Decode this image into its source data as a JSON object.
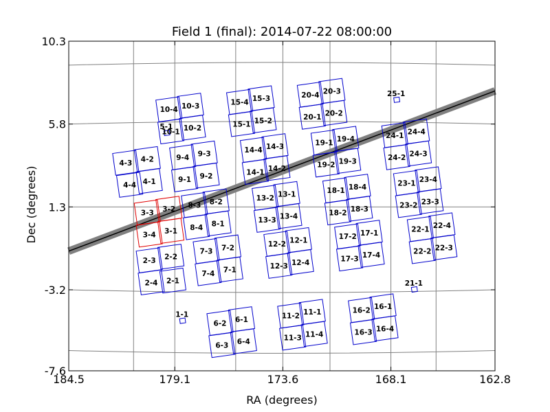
{
  "chart_data": {
    "type": "scatter",
    "title": "Field 1 (final): 2014-07-22 08:00:00",
    "xlabel": "RA (degrees)",
    "ylabel": "Dec (degrees)",
    "xlim": [
      184.5,
      162.8
    ],
    "ylim": [
      -7.6,
      10.3
    ],
    "xticks": [
      "184.5",
      "179.1",
      "173.6",
      "168.1",
      "162.8"
    ],
    "yticks": [
      "10.3",
      "5.8",
      "1.3",
      "-3.2",
      "-7.6"
    ],
    "grid": true,
    "colors": {
      "frame": "#000000",
      "grid": "#808080",
      "active": "#0000cc",
      "highlight": "#e00000",
      "band": "#808080",
      "line": "#000000"
    },
    "ecliptic_band": {
      "points": [
        [
          184.5,
          -1.1
        ],
        [
          162.8,
          7.6
        ]
      ]
    },
    "ccds": [
      {
        "label": "1-1",
        "ra": 178.7,
        "dec": -4.9,
        "size": "small"
      },
      {
        "label": "5-1",
        "ra": 179.5,
        "dec": 5.3,
        "size": "small"
      },
      {
        "label": "21-1",
        "ra": 166.9,
        "dec": -3.2,
        "size": "small"
      },
      {
        "label": "25-1",
        "ra": 167.8,
        "dec": 7.1,
        "size": "small"
      },
      {
        "label": "2-3",
        "ra": 180.4,
        "dec": -1.6
      },
      {
        "label": "2-2",
        "ra": 179.3,
        "dec": -1.4
      },
      {
        "label": "2-4",
        "ra": 180.3,
        "dec": -2.8
      },
      {
        "label": "2-1",
        "ra": 179.2,
        "dec": -2.7
      },
      {
        "label": "3-3",
        "ra": 180.5,
        "dec": 1.0,
        "highlight": true
      },
      {
        "label": "3-2",
        "ra": 179.4,
        "dec": 1.2,
        "highlight": true
      },
      {
        "label": "3-4",
        "ra": 180.4,
        "dec": -0.2,
        "highlight": true
      },
      {
        "label": "3-1",
        "ra": 179.3,
        "dec": 0.0,
        "highlight": true
      },
      {
        "label": "4-3",
        "ra": 181.6,
        "dec": 3.7
      },
      {
        "label": "4-2",
        "ra": 180.5,
        "dec": 3.9
      },
      {
        "label": "4-4",
        "ra": 181.4,
        "dec": 2.5
      },
      {
        "label": "4-1",
        "ra": 180.4,
        "dec": 2.7
      },
      {
        "label": "6-2",
        "ra": 176.8,
        "dec": -5.0
      },
      {
        "label": "6-1",
        "ra": 175.7,
        "dec": -4.8
      },
      {
        "label": "6-3",
        "ra": 176.7,
        "dec": -6.2
      },
      {
        "label": "6-4",
        "ra": 175.6,
        "dec": -6.0
      },
      {
        "label": "7-3",
        "ra": 177.5,
        "dec": -1.1
      },
      {
        "label": "7-2",
        "ra": 176.4,
        "dec": -0.9
      },
      {
        "label": "7-4",
        "ra": 177.4,
        "dec": -2.3
      },
      {
        "label": "7-1",
        "ra": 176.3,
        "dec": -2.1
      },
      {
        "label": "8-3",
        "ra": 178.1,
        "dec": 1.4
      },
      {
        "label": "8-2",
        "ra": 177.0,
        "dec": 1.6
      },
      {
        "label": "8-4",
        "ra": 178.0,
        "dec": 0.2
      },
      {
        "label": "8-1",
        "ra": 176.9,
        "dec": 0.4
      },
      {
        "label": "9-4",
        "ra": 178.7,
        "dec": 4.0
      },
      {
        "label": "9-3",
        "ra": 177.6,
        "dec": 4.2
      },
      {
        "label": "9-1",
        "ra": 178.6,
        "dec": 2.8
      },
      {
        "label": "9-2",
        "ra": 177.5,
        "dec": 3.0
      },
      {
        "label": "10-4",
        "ra": 179.4,
        "dec": 6.6
      },
      {
        "label": "10-3",
        "ra": 178.3,
        "dec": 6.8
      },
      {
        "label": "10-1",
        "ra": 179.3,
        "dec": 5.4
      },
      {
        "label": "10-2",
        "ra": 178.2,
        "dec": 5.6
      },
      {
        "label": "11-2",
        "ra": 173.2,
        "dec": -4.6
      },
      {
        "label": "11-1",
        "ra": 172.1,
        "dec": -4.4
      },
      {
        "label": "11-3",
        "ra": 173.1,
        "dec": -5.8
      },
      {
        "label": "11-4",
        "ra": 172.0,
        "dec": -5.6
      },
      {
        "label": "12-2",
        "ra": 173.9,
        "dec": -0.7
      },
      {
        "label": "12-1",
        "ra": 172.8,
        "dec": -0.5
      },
      {
        "label": "12-3",
        "ra": 173.8,
        "dec": -1.9
      },
      {
        "label": "12-4",
        "ra": 172.7,
        "dec": -1.7
      },
      {
        "label": "13-2",
        "ra": 174.5,
        "dec": 1.8
      },
      {
        "label": "13-1",
        "ra": 173.4,
        "dec": 2.0
      },
      {
        "label": "13-3",
        "ra": 174.4,
        "dec": 0.6
      },
      {
        "label": "13-4",
        "ra": 173.3,
        "dec": 0.8
      },
      {
        "label": "14-4",
        "ra": 175.1,
        "dec": 4.4
      },
      {
        "label": "14-3",
        "ra": 174.0,
        "dec": 4.6
      },
      {
        "label": "14-1",
        "ra": 175.0,
        "dec": 3.2
      },
      {
        "label": "14-2",
        "ra": 173.9,
        "dec": 3.4
      },
      {
        "label": "15-4",
        "ra": 175.8,
        "dec": 7.0
      },
      {
        "label": "15-3",
        "ra": 174.7,
        "dec": 7.2
      },
      {
        "label": "15-1",
        "ra": 175.7,
        "dec": 5.8
      },
      {
        "label": "15-2",
        "ra": 174.6,
        "dec": 6.0
      },
      {
        "label": "16-2",
        "ra": 169.6,
        "dec": -4.3
      },
      {
        "label": "16-1",
        "ra": 168.5,
        "dec": -4.1
      },
      {
        "label": "16-3",
        "ra": 169.5,
        "dec": -5.5
      },
      {
        "label": "16-4",
        "ra": 168.4,
        "dec": -5.3
      },
      {
        "label": "17-2",
        "ra": 170.3,
        "dec": -0.3
      },
      {
        "label": "17-1",
        "ra": 169.2,
        "dec": -0.1
      },
      {
        "label": "17-3",
        "ra": 170.2,
        "dec": -1.5
      },
      {
        "label": "17-4",
        "ra": 169.1,
        "dec": -1.3
      },
      {
        "label": "18-1",
        "ra": 170.9,
        "dec": 2.2
      },
      {
        "label": "18-4",
        "ra": 169.8,
        "dec": 2.4
      },
      {
        "label": "18-2",
        "ra": 170.8,
        "dec": 1.0
      },
      {
        "label": "18-3",
        "ra": 169.7,
        "dec": 1.2
      },
      {
        "label": "19-1",
        "ra": 171.5,
        "dec": 4.8
      },
      {
        "label": "19-4",
        "ra": 170.4,
        "dec": 5.0
      },
      {
        "label": "19-2",
        "ra": 171.4,
        "dec": 3.6
      },
      {
        "label": "19-3",
        "ra": 170.3,
        "dec": 3.8
      },
      {
        "label": "20-4",
        "ra": 172.2,
        "dec": 7.4
      },
      {
        "label": "20-3",
        "ra": 171.1,
        "dec": 7.6
      },
      {
        "label": "20-1",
        "ra": 172.1,
        "dec": 6.2
      },
      {
        "label": "20-2",
        "ra": 171.0,
        "dec": 6.4
      },
      {
        "label": "22-1",
        "ra": 166.6,
        "dec": 0.1
      },
      {
        "label": "22-4",
        "ra": 165.5,
        "dec": 0.3
      },
      {
        "label": "22-2",
        "ra": 166.5,
        "dec": -1.1
      },
      {
        "label": "22-3",
        "ra": 165.4,
        "dec": -0.9
      },
      {
        "label": "23-1",
        "ra": 167.3,
        "dec": 2.6
      },
      {
        "label": "23-4",
        "ra": 166.2,
        "dec": 2.8
      },
      {
        "label": "23-2",
        "ra": 167.2,
        "dec": 1.4
      },
      {
        "label": "23-3",
        "ra": 166.1,
        "dec": 1.6
      },
      {
        "label": "24-1",
        "ra": 167.9,
        "dec": 5.2
      },
      {
        "label": "24-4",
        "ra": 166.8,
        "dec": 5.4
      },
      {
        "label": "24-2",
        "ra": 167.8,
        "dec": 4.0
      },
      {
        "label": "24-3",
        "ra": 166.7,
        "dec": 4.2
      }
    ]
  }
}
